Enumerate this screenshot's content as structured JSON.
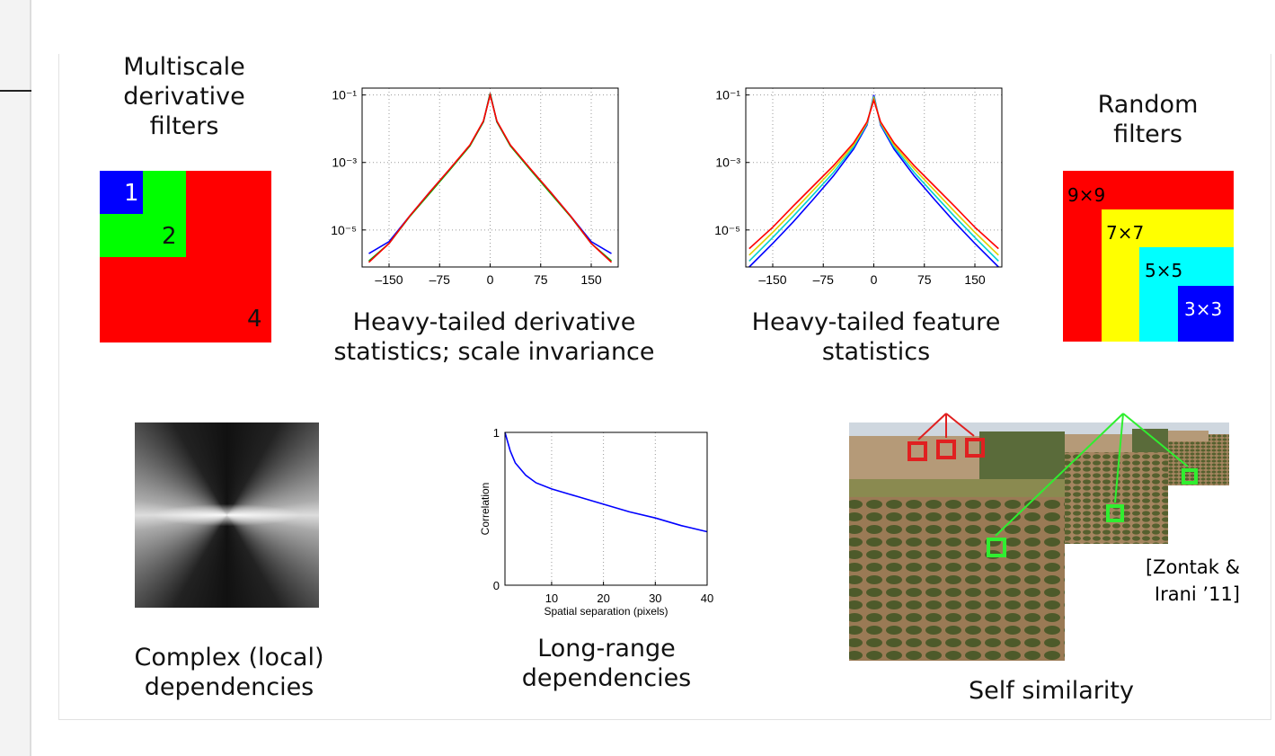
{
  "slide": {
    "filters_caption": [
      "Multiscale",
      "derivative",
      "filters"
    ],
    "filter_labels": [
      "1",
      "2",
      "4"
    ],
    "random_caption": [
      "Random",
      "filters"
    ],
    "random_labels": [
      "9×9",
      "7×7",
      "5×5",
      "3×3"
    ],
    "deriv_caption": [
      "Heavy-tailed derivative",
      "statistics; scale invariance"
    ],
    "feature_caption": [
      "Heavy-tailed feature",
      "statistics"
    ],
    "local_caption": [
      "Complex (local)",
      "dependencies"
    ],
    "long_caption": [
      "Long-range",
      "dependencies"
    ],
    "self_caption": "Self similarity",
    "citation": [
      "[Zontak &",
      "Irani ’11]"
    ]
  },
  "chart_data": [
    {
      "type": "line",
      "log_y": true,
      "grid": true,
      "x": [
        -180,
        -150,
        -120,
        -90,
        -60,
        -30,
        -10,
        0,
        10,
        30,
        60,
        90,
        120,
        150,
        180
      ],
      "series": [
        {
          "color": "#0000ff",
          "values": [
            2e-06,
            4.5e-06,
            2.5e-05,
            0.00013,
            0.00063,
            0.0032,
            0.016,
            0.11,
            0.016,
            0.0032,
            0.00063,
            0.00013,
            2.5e-05,
            4.5e-06,
            2e-06
          ]
        },
        {
          "color": "#00b000",
          "values": [
            1.2e-06,
            4e-06,
            2.4e-05,
            0.00012,
            0.0006,
            0.0031,
            0.016,
            0.11,
            0.016,
            0.0031,
            0.0006,
            0.00012,
            2.4e-05,
            4e-06,
            1.2e-06
          ]
        },
        {
          "color": "#ff0000",
          "values": [
            1.1e-06,
            4e-06,
            2.5e-05,
            0.00013,
            0.00064,
            0.0033,
            0.017,
            0.1,
            0.017,
            0.0033,
            0.00064,
            0.00013,
            2.5e-05,
            4e-06,
            1.1e-06
          ]
        }
      ],
      "xlim": [
        -190,
        190
      ],
      "ylim": [
        8e-07,
        0.16
      ],
      "xticks": [
        {
          "value": -150,
          "label": "–150"
        },
        {
          "value": -75,
          "label": "–75"
        },
        0,
        75,
        150
      ],
      "yticks": [
        {
          "value": 0.1,
          "label": "10⁻¹"
        },
        {
          "value": 0.001,
          "label": "10⁻³"
        },
        {
          "value": 1e-05,
          "label": "10⁻⁵"
        }
      ]
    },
    {
      "type": "line",
      "log_y": true,
      "grid": true,
      "x": [
        -185,
        -150,
        -120,
        -90,
        -60,
        -30,
        -10,
        0,
        10,
        30,
        60,
        90,
        120,
        150,
        185
      ],
      "series": [
        {
          "color": "#0000ff",
          "values": [
            8e-07,
            4e-06,
            1.7e-05,
            8e-05,
            0.0004,
            0.0025,
            0.013,
            0.1,
            0.013,
            0.0025,
            0.0004,
            8e-05,
            1.7e-05,
            4e-06,
            8e-07
          ]
        },
        {
          "color": "#00d0d0",
          "values": [
            1.2e-06,
            6e-06,
            2.5e-05,
            0.00011,
            0.0005,
            0.0029,
            0.014,
            0.09,
            0.014,
            0.0029,
            0.0005,
            0.00011,
            2.5e-05,
            6e-06,
            1.2e-06
          ]
        },
        {
          "color": "#e0d000",
          "values": [
            1.8e-06,
            8.5e-06,
            3.5e-05,
            0.00015,
            0.00065,
            0.0033,
            0.015,
            0.08,
            0.015,
            0.0033,
            0.00065,
            0.00015,
            3.5e-05,
            8.5e-06,
            1.8e-06
          ]
        },
        {
          "color": "#ff0000",
          "values": [
            2.8e-06,
            1.2e-05,
            5e-05,
            0.0002,
            0.0008,
            0.0038,
            0.016,
            0.07,
            0.016,
            0.0038,
            0.0008,
            0.0002,
            5e-05,
            1.2e-05,
            2.8e-06
          ]
        }
      ],
      "xlim": [
        -190,
        190
      ],
      "ylim": [
        8e-07,
        0.16
      ],
      "xticks": [
        {
          "value": -150,
          "label": "–150"
        },
        {
          "value": -75,
          "label": "–75"
        },
        0,
        75,
        150
      ],
      "yticks": [
        {
          "value": 0.1,
          "label": "10⁻¹"
        },
        {
          "value": 0.001,
          "label": "10⁻³"
        },
        {
          "value": 1e-05,
          "label": "10⁻⁵"
        }
      ]
    },
    {
      "type": "line",
      "log_y": false,
      "grid": true,
      "x_label": "Spatial separation (pixels)",
      "y_label": "Correlation",
      "x": [
        1,
        2,
        3,
        5,
        7,
        10,
        15,
        20,
        25,
        30,
        35,
        40
      ],
      "series": [
        {
          "color": "#0000ff",
          "values": [
            1,
            0.88,
            0.8,
            0.72,
            0.67,
            0.63,
            0.58,
            0.53,
            0.48,
            0.44,
            0.39,
            0.35
          ]
        }
      ],
      "xlim": [
        1,
        40
      ],
      "ylim": [
        0,
        1
      ],
      "xticks": [
        10,
        20,
        30,
        40
      ],
      "yticks": [
        0,
        1
      ]
    }
  ]
}
